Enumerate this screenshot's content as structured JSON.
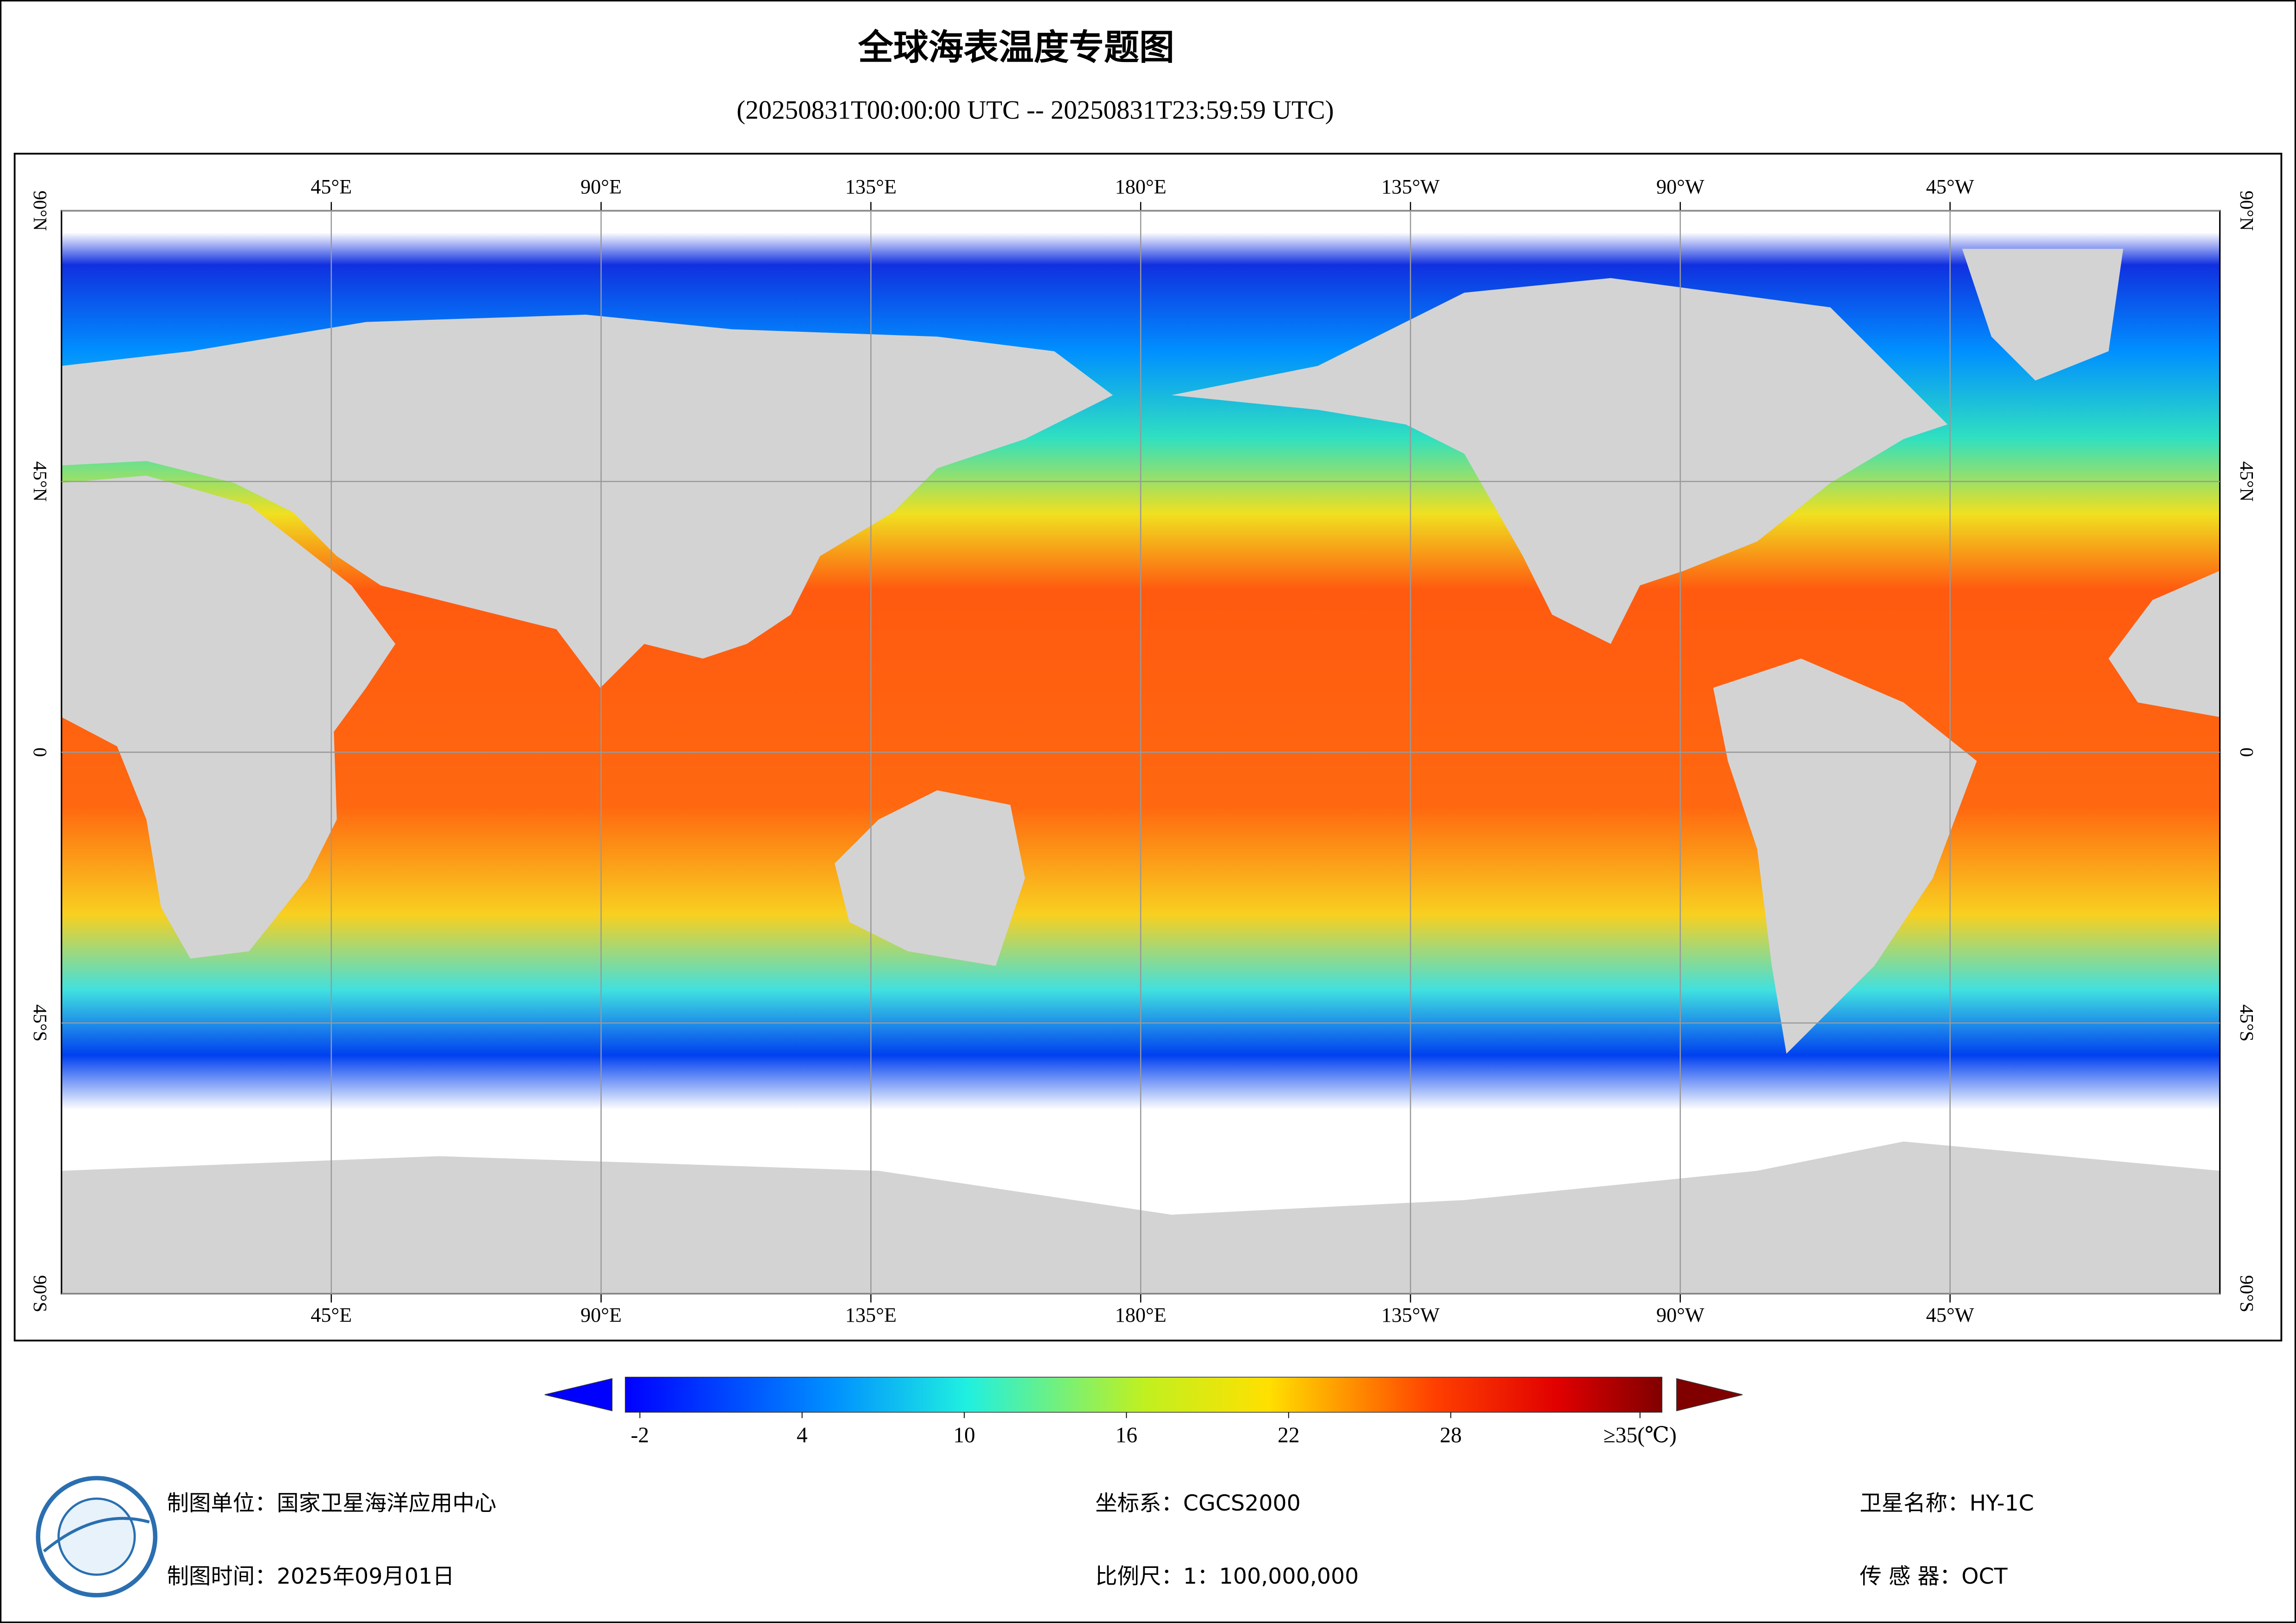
{
  "title": "全球海表温度专题图",
  "subtitle": "(20250831T00:00:00 UTC -- 20250831T23:59:59 UTC)",
  "map": {
    "lon_ticks": [
      {
        "value": 45,
        "label": "45°E"
      },
      {
        "value": 90,
        "label": "90°E"
      },
      {
        "value": 135,
        "label": "135°E"
      },
      {
        "value": 180,
        "label": "180°E"
      },
      {
        "value": 225,
        "label": "135°W"
      },
      {
        "value": 270,
        "label": "90°W"
      },
      {
        "value": 315,
        "label": "45°W"
      }
    ],
    "lat_ticks": [
      {
        "value": 90,
        "label": "90°N"
      },
      {
        "value": 45,
        "label": "45°N"
      },
      0,
      {
        "value": -45,
        "label": "45°S"
      },
      {
        "value": -90,
        "label": "90°S"
      }
    ]
  },
  "colorbar": {
    "ticks": [
      -2,
      4,
      10,
      16,
      22,
      28,
      {
        "value": 35,
        "label": "≥35(℃)"
      }
    ]
  },
  "footer": {
    "unit": "制图单位：国家卫星海洋应用中心",
    "date": "制图时间：2025年09月01日",
    "crs": "坐标系：CGCS2000",
    "scale": "比例尺：1：100,000,000",
    "satellite": "卫星名称：HY-1C",
    "sensor": "传 感 器：OCT"
  }
}
